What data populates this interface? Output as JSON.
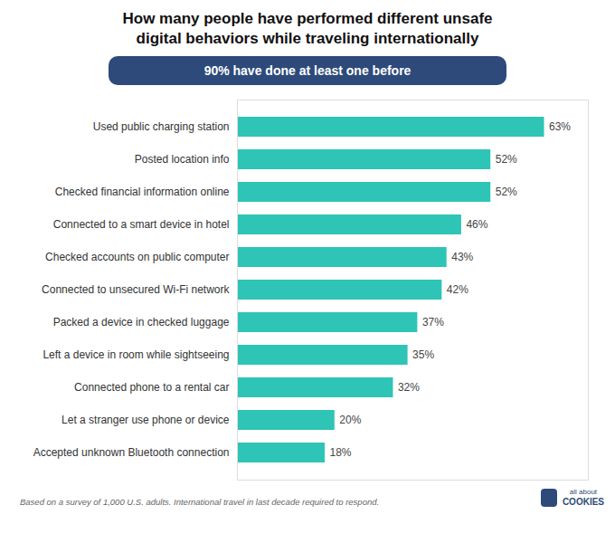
{
  "chart_data": {
    "type": "bar",
    "title": "How many people have performed different unsafe\ndigital behaviors while traveling internationally",
    "subtitle": "90% have done at least one before",
    "categories": [
      "Accepted unknown Bluetooth connection",
      "Let a stranger use phone or device",
      "Connected phone to a rental car",
      "Left a device in room while sightseeing",
      "Packed a device in checked luggage",
      "Connected to unsecured Wi-Fi network",
      "Checked accounts on public computer",
      "Connected to a smart device in hotel",
      "Checked financial information online",
      "Posted location info",
      "Used public charging station"
    ],
    "values": [
      18,
      20,
      32,
      35,
      37,
      42,
      43,
      46,
      52,
      52,
      63
    ],
    "value_labels": [
      "18%",
      "20%",
      "32%",
      "35%",
      "37%",
      "42%",
      "43%",
      "46%",
      "52%",
      "52%",
      "63%"
    ],
    "color": "#2ec4b6",
    "orientation": "horizontal",
    "xlim": [
      0,
      72
    ],
    "data_labels": true,
    "tick_labels": "y",
    "grid": false,
    "footnote": "Based on a survey of 1,000 U.S. adults. International travel in last decade required to respond.",
    "annotations": [
      "all about",
      "COOKIES"
    ]
  }
}
